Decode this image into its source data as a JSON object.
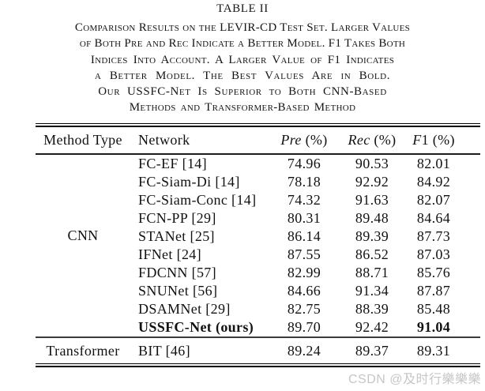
{
  "title": "TABLE II",
  "caption_lines": [
    "Comparison Results on the LEVIR-CD Test Set. Larger Values",
    "of Both Pre and Rec Indicate a Better Model. F1 Takes Both",
    "Indices Into Account. A Larger Value of F1 Indicates",
    "a Better Model. The Best Values Are in Bold.",
    "Our USSFC-Net Is Superior to Both CNN-Based",
    "Methods and Transformer-Based Method"
  ],
  "table": {
    "header": [
      {
        "key": "method-type",
        "em": "",
        "text": "Method Type"
      },
      {
        "key": "network",
        "em": "",
        "text": "Network"
      },
      {
        "key": "pre",
        "em": "Pre",
        "text": " (%)"
      },
      {
        "key": "rec",
        "em": "Rec",
        "text": " (%)"
      },
      {
        "key": "f1",
        "em": "F",
        "text": "1 (%)"
      }
    ],
    "groups": [
      {
        "method_type": "CNN",
        "rows": [
          {
            "network": "FC-EF [14]",
            "pre": "74.96",
            "rec": "90.53",
            "f1": "82.01"
          },
          {
            "network": "FC-Siam-Di [14]",
            "pre": "78.18",
            "rec": "92.92",
            "f1": "84.92"
          },
          {
            "network": "FC-Siam-Conc [14]",
            "pre": "74.32",
            "rec": "91.63",
            "f1": "82.07"
          },
          {
            "network": "FCN-PP [29]",
            "pre": "80.31",
            "rec": "89.48",
            "f1": "84.64"
          },
          {
            "network": "STANet [25]",
            "pre": "86.14",
            "rec": "89.39",
            "f1": "87.73"
          },
          {
            "network": "IFNet [24]",
            "pre": "87.55",
            "rec": "86.52",
            "f1": "87.03"
          },
          {
            "network": "FDCNN [57]",
            "pre": "82.99",
            "rec": "88.71",
            "f1": "85.76"
          },
          {
            "network": "SNUNet [56]",
            "pre": "84.66",
            "rec": "91.34",
            "f1": "87.87"
          },
          {
            "network": "DSAMNet [29]",
            "pre": "82.75",
            "rec": "88.39",
            "f1": "85.48"
          },
          {
            "network": "USSFC-Net (ours)",
            "pre": "89.70",
            "rec": "92.42",
            "f1": "91.04",
            "network_bold": true,
            "f1_bold": true
          }
        ]
      },
      {
        "method_type": "Transformer",
        "rows": [
          {
            "network": "BIT [46]",
            "pre": "89.24",
            "rec": "89.37",
            "f1": "89.31"
          }
        ]
      }
    ]
  },
  "watermark": "CSDN @及时行樂樂樂",
  "colors": {
    "background": "#ffffff",
    "text": "#161616",
    "rule": "#000000",
    "watermark": "#c6c6c6"
  }
}
